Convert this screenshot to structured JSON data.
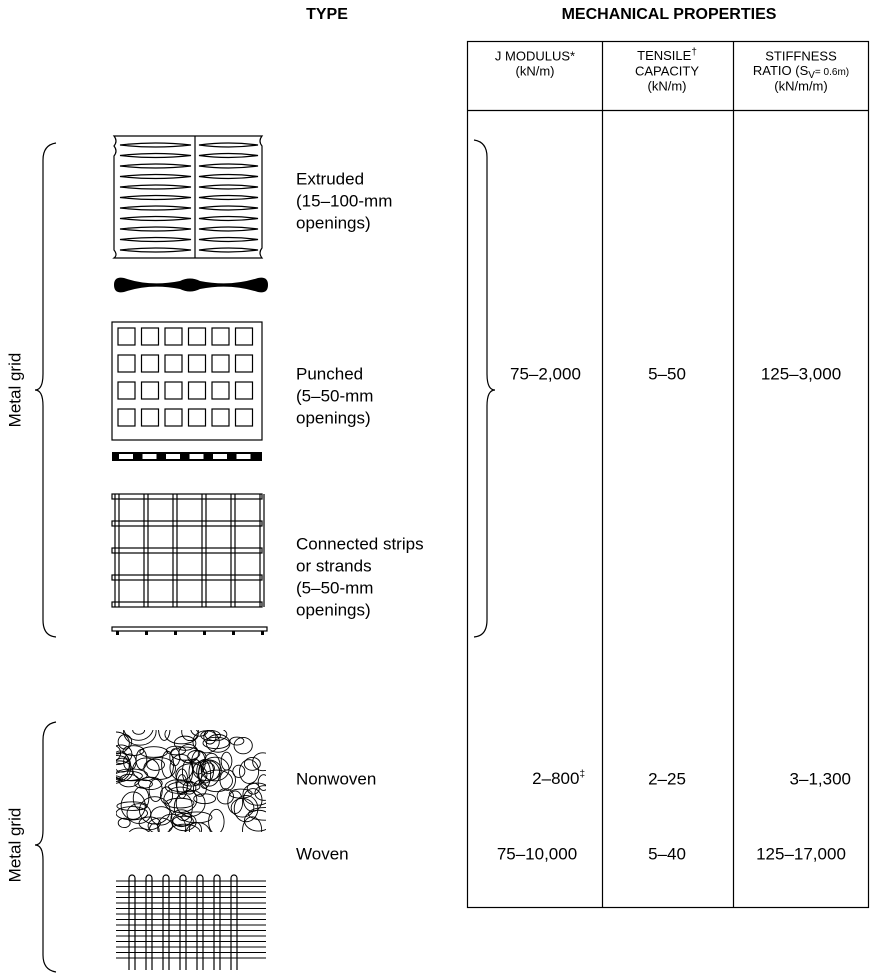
{
  "header": {
    "type_title": "TYPE",
    "properties_title": "MECHANICAL PROPERTIES"
  },
  "columns": [
    {
      "title": "J MODULUS*",
      "unit": "(kN/m)"
    },
    {
      "title": "TENSILE",
      "mark": "†",
      "line2": "CAPACITY",
      "unit": "(kN/m)"
    },
    {
      "title": "STIFFNESS",
      "ratio": "RATIO (S",
      "sub": "V",
      "ratio_end": "= 0.6m)",
      "unit": "(kN/m/m)"
    }
  ],
  "groups": [
    {
      "label": "Metal grid",
      "types": [
        {
          "lines": [
            "Extruded",
            "(15–100-mm",
            "openings)"
          ]
        },
        {
          "lines": [
            "Punched",
            "(5–50-mm",
            "openings)"
          ]
        },
        {
          "lines": [
            "Connected strips",
            "or strands",
            "(5–50-mm",
            "openings)"
          ]
        }
      ],
      "properties": [
        "75–2,000",
        "5–50",
        "125–3,000"
      ]
    },
    {
      "label": "Metal grid",
      "types": [
        {
          "lines": [
            "Nonwoven"
          ],
          "properties": [
            "2–800",
            "2–25",
            "3–1,300"
          ],
          "footnote": "‡"
        },
        {
          "lines": [
            "Woven"
          ],
          "properties": [
            "75–10,000",
            "5–40",
            "125–17,000"
          ]
        }
      ]
    }
  ]
}
